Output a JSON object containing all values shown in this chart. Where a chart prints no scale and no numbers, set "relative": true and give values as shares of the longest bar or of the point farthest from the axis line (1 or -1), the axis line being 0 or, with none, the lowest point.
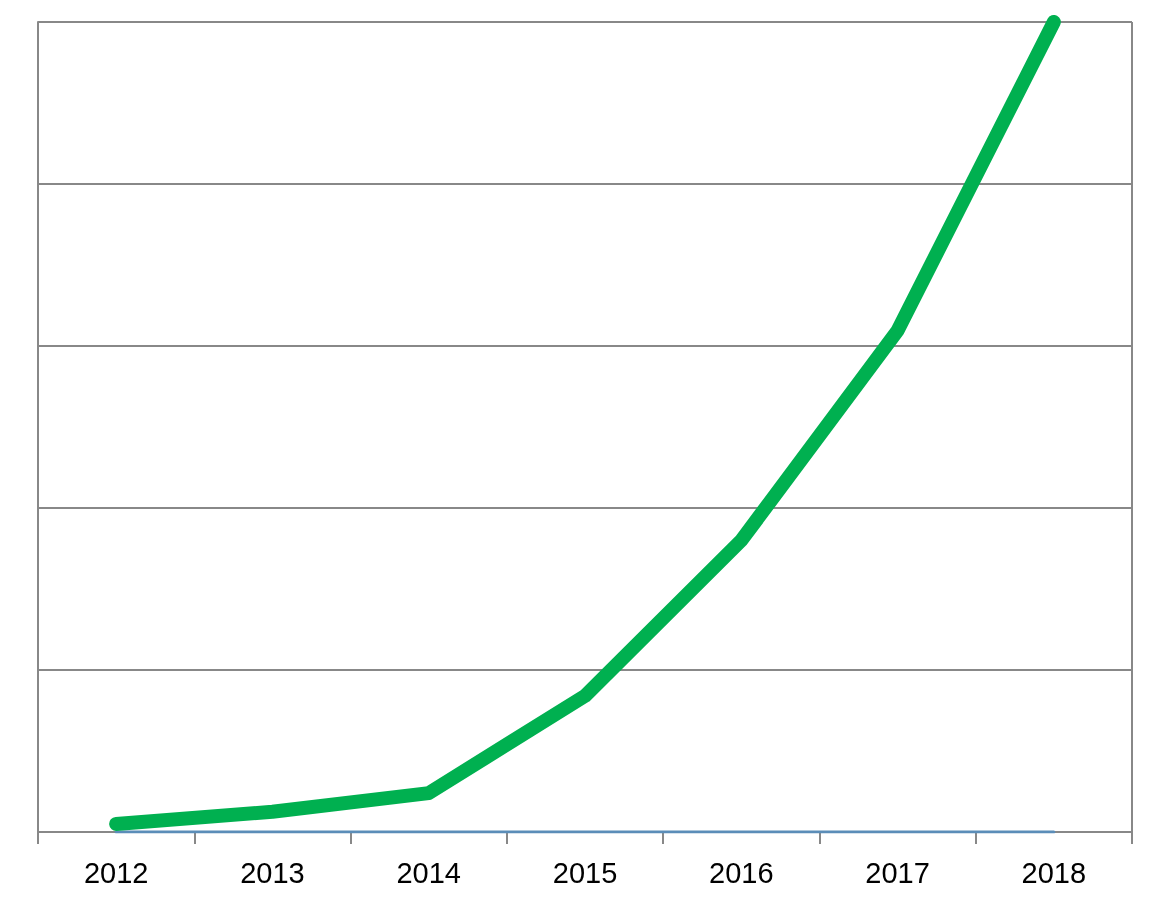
{
  "chart_data": {
    "type": "line",
    "relative": true,
    "grid": "y",
    "marker": "none",
    "line_style": "solid",
    "categories": [
      "2012",
      "2013",
      "2014",
      "2015",
      "2016",
      "2017",
      "2018"
    ],
    "series": [
      {
        "color": "#00b050",
        "values": [
          0.01,
          0.025,
          0.048,
          0.168,
          0.36,
          0.619,
          1
        ]
      },
      {
        "color": "#5b8db8",
        "values": [
          0,
          0,
          0,
          0,
          0,
          0,
          0
        ]
      }
    ]
  }
}
